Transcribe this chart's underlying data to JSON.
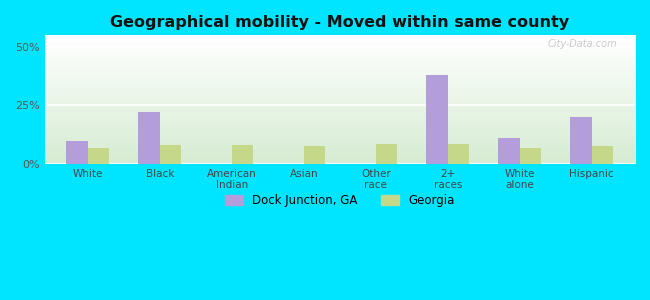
{
  "title": "Geographical mobility - Moved within same county",
  "categories": [
    "White",
    "Black",
    "American\nIndian",
    "Asian",
    "Other\nrace",
    "2+\nraces",
    "White\nalone",
    "Hispanic"
  ],
  "dock_junction": [
    10.0,
    22.0,
    0.0,
    0.0,
    0.0,
    38.0,
    11.0,
    20.0
  ],
  "georgia": [
    7.0,
    8.0,
    8.0,
    7.5,
    8.5,
    8.5,
    7.0,
    7.5
  ],
  "dock_color": "#b39ddb",
  "georgia_color": "#c5d88a",
  "outer_bg": "#00e5ff",
  "plot_bg_top": "#ffffff",
  "plot_bg_bottom": "#d6ecd2",
  "yticks": [
    0,
    25,
    50
  ],
  "ylim": [
    0,
    55
  ],
  "bar_width": 0.3,
  "legend_labels": [
    "Dock Junction, GA",
    "Georgia"
  ],
  "watermark": "City-Data.com"
}
